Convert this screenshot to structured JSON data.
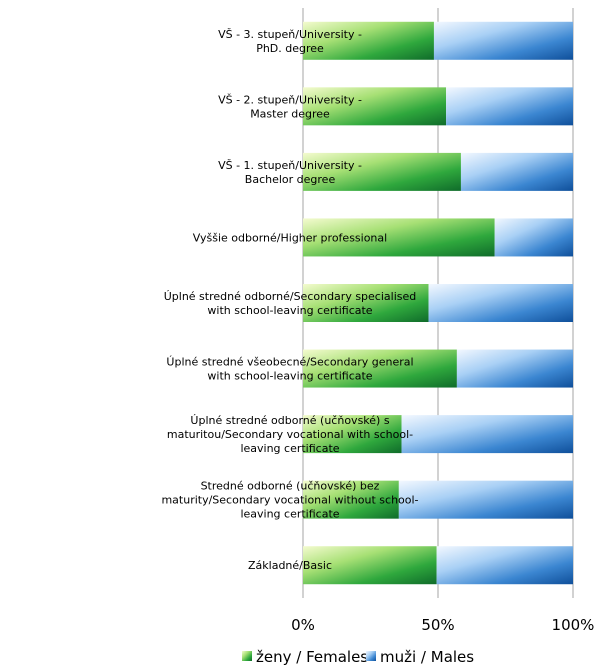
{
  "chart_data": {
    "type": "bar",
    "orientation": "horizontal",
    "stacked": "percent",
    "categories": [
      [
        "VŠ - 3. stupeň/University -",
        "PhD. degree"
      ],
      [
        "VŠ - 2. stupeň/University -",
        "Master degree"
      ],
      [
        "VŠ - 1. stupeň/University -",
        "Bachelor degree"
      ],
      [
        "Vyššie odborné/Higher professional"
      ],
      [
        "Úplné stredné odborné/Secondary specialised",
        "with school-leaving certificate"
      ],
      [
        "Úplné stredné všeobecné/Secondary general",
        "with school-leaving certificate"
      ],
      [
        "Úplné stredné odborné (učňovské) s",
        "maturitou/Secondary vocational with school-",
        "leaving certificate"
      ],
      [
        "Stredné odborné (učňovské) bez",
        "maturity/Secondary vocational without school-",
        "leaving certificate"
      ],
      [
        "Základné/Basic"
      ]
    ],
    "series": [
      {
        "name": "ženy / Females",
        "values": [
          48.5,
          53,
          58.5,
          71,
          46.5,
          57,
          36.5,
          35.5,
          49.5
        ],
        "color": "#2e9e3c"
      },
      {
        "name": "muži / Males",
        "values": [
          51.5,
          47,
          41.5,
          29,
          53.5,
          43,
          63.5,
          64.5,
          50.5
        ],
        "color": "#2f7cc4"
      }
    ],
    "x_ticks": [
      "0%",
      "50%",
      "100%"
    ],
    "xlim": [
      0,
      100
    ],
    "grid": "vertical",
    "legend": "bottom"
  }
}
